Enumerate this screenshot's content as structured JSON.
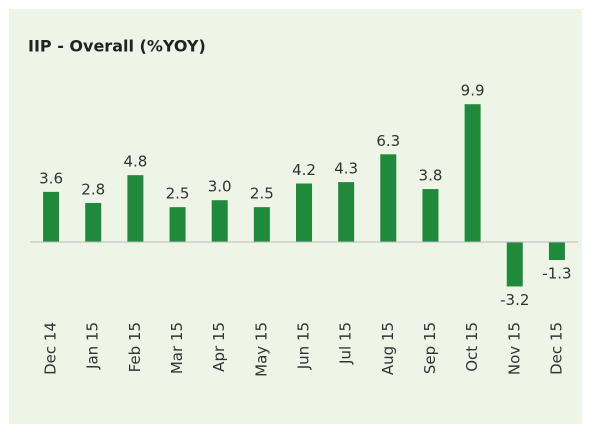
{
  "chart_data": {
    "type": "bar",
    "title": "IIP - Overall (%YOY)",
    "categories": [
      "Dec 14",
      "Jan 15",
      "Feb 15",
      "Mar 15",
      "Apr 15",
      "May 15",
      "Jun 15",
      "Jul 15",
      "Aug 15",
      "Sep 15",
      "Oct 15",
      "Nov 15",
      "Dec 15"
    ],
    "values": [
      3.6,
      2.8,
      4.8,
      2.5,
      3.0,
      2.5,
      4.2,
      4.3,
      6.3,
      3.8,
      9.9,
      -3.2,
      -1.3
    ],
    "value_labels": [
      "3.6",
      "2.8",
      "4.8",
      "2.5",
      "3.0",
      "2.5",
      "4.2",
      "4.3",
      "6.3",
      "3.8",
      "9.9",
      "-3.2",
      "-1.3"
    ],
    "color": "#1f8a3c",
    "ylim": [
      -5,
      12
    ]
  }
}
